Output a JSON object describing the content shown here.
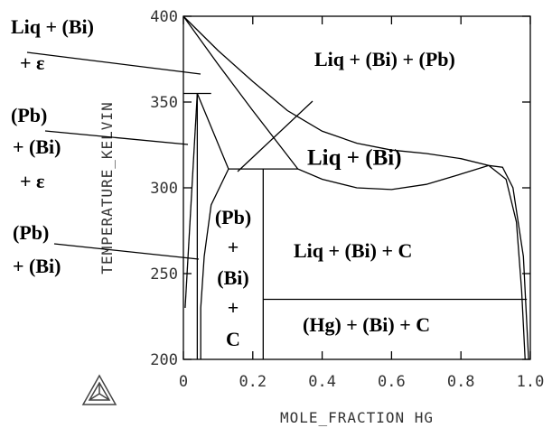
{
  "chart_data": {
    "type": "line",
    "x_label": "MOLE_FRACTION HG",
    "y_label": "TEMPERATURE_KELVIN",
    "xlim": [
      0,
      1
    ],
    "ylim": [
      200,
      400
    ],
    "xticks": [
      0,
      0.2,
      0.4,
      0.6,
      0.8,
      {
        "value": 1,
        "label": "1.0"
      }
    ],
    "yticks": [
      200,
      250,
      300,
      350,
      400
    ],
    "color": "#000000",
    "series": [
      {
        "x": [
          0,
          0.1,
          0.2,
          0.3,
          0.4,
          0.5,
          0.6,
          0.7,
          0.8,
          0.88
        ],
        "values": [
          400,
          380,
          362,
          345,
          333,
          326,
          322,
          320,
          317,
          313
        ]
      },
      {
        "x": [
          0,
          0.1,
          0.2,
          0.33,
          0.4,
          0.5,
          0.6,
          0.7,
          0.8,
          0.88
        ],
        "values": [
          400,
          372,
          345,
          311,
          305,
          300,
          299,
          302,
          308,
          313
        ]
      },
      {
        "x": [
          0.88,
          0.93,
          0.96,
          0.975,
          0.985
        ],
        "values": [
          313,
          305,
          280,
          240,
          200
        ]
      },
      {
        "x": [
          0.88,
          0.92,
          0.95,
          0.98,
          0.995
        ],
        "values": [
          313,
          312,
          300,
          260,
          200
        ]
      },
      {
        "x": [
          0,
          0.08
        ],
        "values": [
          355,
          355
        ]
      },
      {
        "x": [
          0.13,
          0.33
        ],
        "values": [
          311,
          311
        ]
      },
      {
        "x": [
          0.23,
          0.99
        ],
        "values": [
          235,
          235
        ]
      },
      {
        "x": [
          0.23,
          0.23
        ],
        "values": [
          311,
          200
        ]
      },
      {
        "x": [
          0.04,
          0.13
        ],
        "values": [
          355,
          311
        ]
      },
      {
        "x": [
          0.005,
          0.04
        ],
        "values": [
          230,
          355
        ]
      },
      {
        "x": [
          0.04,
          0.04
        ],
        "values": [
          355,
          200
        ]
      },
      {
        "x": [
          0.13,
          0.08,
          0.06,
          0.05,
          0.05
        ],
        "values": [
          311,
          290,
          260,
          230,
          200
        ]
      }
    ],
    "annotations": [
      [
        "Liq + (Bi)",
        "+ ε"
      ],
      [
        "(Pb)",
        "+ (Bi)",
        "+ ε"
      ],
      [
        "(Pb)",
        "+ (Bi)"
      ],
      [
        "Liq + (Bi) + (Pb)"
      ],
      [
        "Liq + (Bi)"
      ],
      [
        "(Pb)",
        "+",
        "(Bi)",
        "+",
        "C"
      ],
      [
        "Liq + (Bi) + C"
      ],
      [
        "(Hg) + (Bi) + C"
      ]
    ]
  }
}
